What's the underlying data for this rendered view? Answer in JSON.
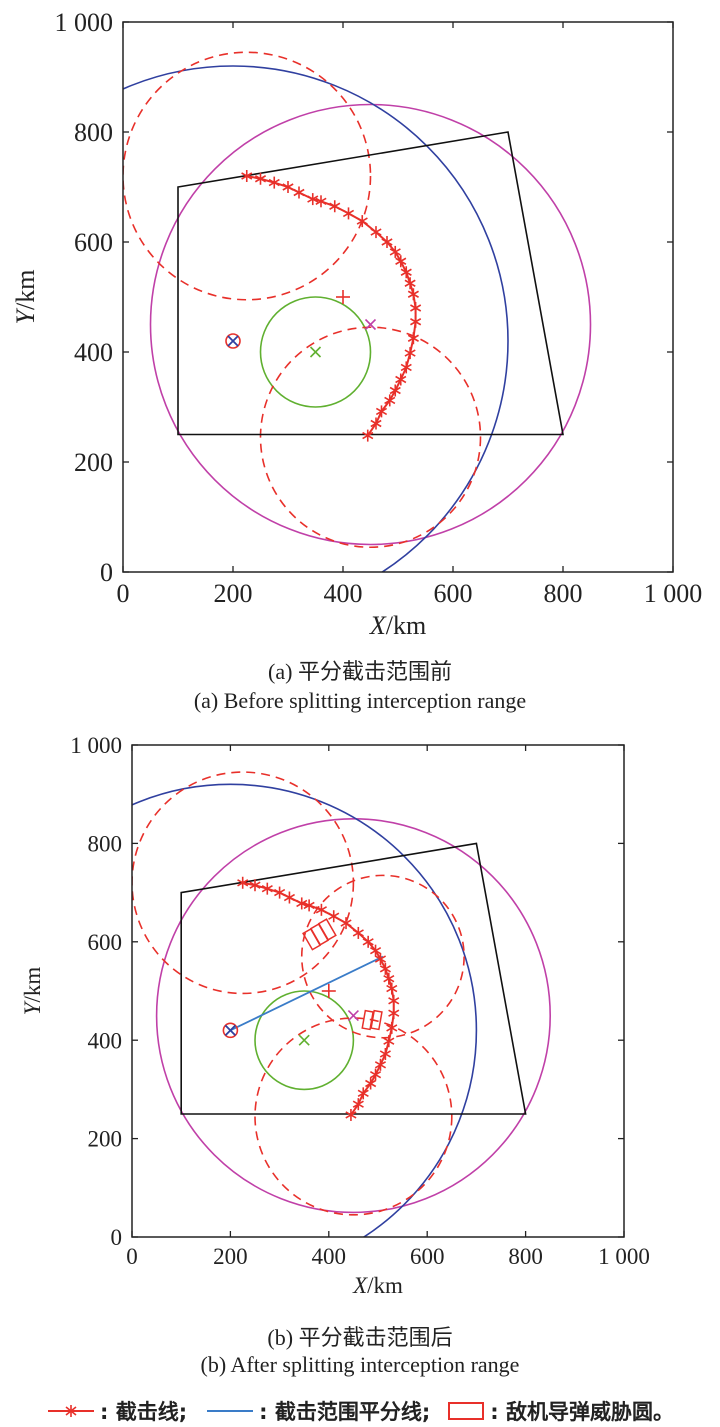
{
  "chart_data": [
    {
      "type": "scatter",
      "id": "a",
      "xlabel": "X/km",
      "ylabel": "Y/km",
      "xlim": [
        0,
        1000
      ],
      "ylim": [
        0,
        1000
      ],
      "xticks": [
        "0",
        "200",
        "400",
        "600",
        "800",
        "1 000"
      ],
      "yticks": [
        "0",
        "200",
        "400",
        "600",
        "800",
        "1 000"
      ],
      "tick_values": [
        0,
        200,
        400,
        600,
        800,
        1000
      ],
      "caption_cn": "(a) 平分截击范围前",
      "caption_en": "(a) Before splitting interception range",
      "polygon": [
        [
          100,
          700
        ],
        [
          700,
          800
        ],
        [
          800,
          250
        ],
        [
          100,
          250
        ]
      ],
      "circles": [
        {
          "name": "magenta-circle",
          "cx": 450,
          "cy": 450,
          "r": 400,
          "color": "#c040a8",
          "dash": false
        },
        {
          "name": "blue-circle",
          "cx": 200,
          "cy": 420,
          "r": 500,
          "color": "#3040a0",
          "dash": false
        },
        {
          "name": "green-circle",
          "cx": 350,
          "cy": 400,
          "r": 100,
          "color": "#60b030",
          "dash": false
        },
        {
          "name": "red-dashed-circle-upper",
          "cx": 225,
          "cy": 720,
          "r": 225,
          "color": "#e8302a",
          "dash": true
        },
        {
          "name": "red-dashed-circle-lower",
          "cx": 450,
          "cy": 245,
          "r": 200,
          "color": "#e8302a",
          "dash": true
        }
      ],
      "interception_line": [
        [
          225,
          720
        ],
        [
          250,
          715
        ],
        [
          275,
          708
        ],
        [
          300,
          700
        ],
        [
          320,
          690
        ],
        [
          345,
          678
        ],
        [
          360,
          674
        ],
        [
          385,
          665
        ],
        [
          410,
          652
        ],
        [
          435,
          638
        ],
        [
          460,
          618
        ],
        [
          480,
          600
        ],
        [
          495,
          582
        ],
        [
          505,
          565
        ],
        [
          515,
          545
        ],
        [
          522,
          525
        ],
        [
          528,
          505
        ],
        [
          532,
          480
        ],
        [
          532,
          455
        ],
        [
          528,
          425
        ],
        [
          522,
          398
        ],
        [
          515,
          372
        ],
        [
          505,
          350
        ],
        [
          495,
          330
        ],
        [
          485,
          312
        ],
        [
          470,
          292
        ],
        [
          460,
          270
        ],
        [
          445,
          248
        ]
      ],
      "bisector": [],
      "threat_rects": [],
      "markers": [
        {
          "name": "blue-circled-x-marker",
          "x": 200,
          "y": 420,
          "type": "circled-x"
        },
        {
          "name": "green-x-marker",
          "x": 350,
          "y": 400,
          "type": "x",
          "color": "#60b030"
        },
        {
          "name": "red-plus-marker",
          "x": 400,
          "y": 500,
          "type": "plus",
          "color": "#e8302a"
        },
        {
          "name": "magenta-x-marker",
          "x": 450,
          "y": 450,
          "type": "x",
          "color": "#c040a8"
        }
      ]
    },
    {
      "type": "scatter",
      "id": "b",
      "xlabel": "X/km",
      "ylabel": "Y/km",
      "xlim": [
        0,
        1000
      ],
      "ylim": [
        0,
        1000
      ],
      "xticks": [
        "0",
        "200",
        "400",
        "600",
        "800",
        "1 000"
      ],
      "yticks": [
        "0",
        "200",
        "400",
        "600",
        "800",
        "1 000"
      ],
      "tick_values": [
        0,
        200,
        400,
        600,
        800,
        1000
      ],
      "caption_cn": "(b) 平分截击范围后",
      "caption_en": "(b) After splitting interception range",
      "polygon": [
        [
          100,
          700
        ],
        [
          700,
          800
        ],
        [
          800,
          250
        ],
        [
          100,
          250
        ]
      ],
      "circles": [
        {
          "name": "magenta-circle",
          "cx": 450,
          "cy": 450,
          "r": 400,
          "color": "#c040a8",
          "dash": false
        },
        {
          "name": "blue-circle",
          "cx": 200,
          "cy": 420,
          "r": 500,
          "color": "#3040a0",
          "dash": false
        },
        {
          "name": "green-circle",
          "cx": 350,
          "cy": 400,
          "r": 100,
          "color": "#60b030",
          "dash": false
        },
        {
          "name": "red-dashed-circle-upper",
          "cx": 225,
          "cy": 720,
          "r": 225,
          "color": "#e8302a",
          "dash": true
        },
        {
          "name": "red-dashed-circle-lower",
          "cx": 450,
          "cy": 245,
          "r": 200,
          "color": "#e8302a",
          "dash": true
        },
        {
          "name": "red-dashed-circle-right",
          "cx": 510,
          "cy": 570,
          "r": 165,
          "color": "#e8302a",
          "dash": true
        }
      ],
      "interception_line": [
        [
          225,
          720
        ],
        [
          250,
          715
        ],
        [
          275,
          708
        ],
        [
          300,
          700
        ],
        [
          320,
          690
        ],
        [
          345,
          678
        ],
        [
          360,
          674
        ],
        [
          385,
          665
        ],
        [
          410,
          652
        ],
        [
          435,
          638
        ],
        [
          460,
          618
        ],
        [
          480,
          600
        ],
        [
          495,
          582
        ],
        [
          505,
          565
        ],
        [
          515,
          545
        ],
        [
          522,
          525
        ],
        [
          528,
          505
        ],
        [
          532,
          480
        ],
        [
          532,
          455
        ],
        [
          528,
          425
        ],
        [
          522,
          398
        ],
        [
          515,
          372
        ],
        [
          505,
          350
        ],
        [
          495,
          330
        ],
        [
          485,
          312
        ],
        [
          470,
          292
        ],
        [
          460,
          270
        ],
        [
          445,
          248
        ]
      ],
      "bisector": [
        [
          200,
          420
        ],
        [
          510,
          570
        ]
      ],
      "threat_rects": [
        {
          "cx": 365,
          "cy": 605,
          "w": 18,
          "h": 38,
          "angle": -30
        },
        {
          "cx": 381,
          "cy": 615,
          "w": 18,
          "h": 38,
          "angle": -30
        },
        {
          "cx": 397,
          "cy": 625,
          "w": 18,
          "h": 38,
          "angle": -30
        },
        {
          "cx": 479,
          "cy": 441,
          "w": 16,
          "h": 36,
          "angle": 10
        },
        {
          "cx": 497,
          "cy": 441,
          "w": 16,
          "h": 36,
          "angle": 10
        }
      ],
      "markers": [
        {
          "name": "blue-circled-x-marker",
          "x": 200,
          "y": 420,
          "type": "circled-x"
        },
        {
          "name": "green-x-marker",
          "x": 350,
          "y": 400,
          "type": "x",
          "color": "#60b030"
        },
        {
          "name": "red-plus-marker",
          "x": 400,
          "y": 500,
          "type": "plus",
          "color": "#e8302a"
        },
        {
          "name": "magenta-x-marker",
          "x": 450,
          "y": 450,
          "type": "x",
          "color": "#c040a8"
        }
      ]
    }
  ],
  "legend": {
    "interception_line": ": 截击线;",
    "bisector": ": 截击范围平分线;",
    "threat_circle": ": 敌机导弹威胁圆。"
  },
  "colors": {
    "red": "#e8302a",
    "blue_line": "#3a7cc8",
    "axis": "#222222"
  }
}
